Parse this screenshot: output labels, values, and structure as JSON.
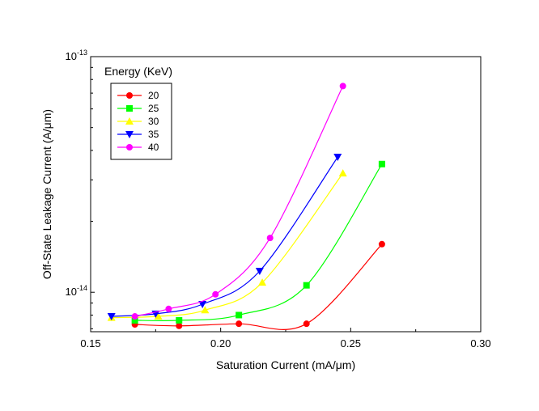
{
  "chart_data": {
    "type": "scatter",
    "xlabel": "Saturation Current (mA/μm)",
    "ylabel": "Off-State Leakage Current (A/μm)",
    "xlim": [
      0.15,
      0.3
    ],
    "ylim": [
      6.8e-15,
      1e-13
    ],
    "yscale": "log",
    "x_ticks": [
      {
        "value": 0.15,
        "label": "0.15"
      },
      {
        "value": 0.2,
        "label": "0.20"
      },
      {
        "value": 0.25,
        "label": "0.25"
      },
      {
        "value": 0.3,
        "label": "0.30"
      }
    ],
    "y_ticks": [
      {
        "value": 1e-14,
        "base": "10",
        "exp": "-14"
      },
      {
        "value": 1e-13,
        "base": "10",
        "exp": "-13"
      }
    ],
    "grid": false,
    "legend": {
      "title": "Energy (KeV)",
      "placement": "top-left"
    },
    "series": [
      {
        "name": "20",
        "color": "#ff0000",
        "marker": "circle",
        "x": [
          0.167,
          0.184,
          0.207,
          0.233,
          0.262
        ],
        "y": [
          7.3e-15,
          7.2e-15,
          7.35e-15,
          7.35e-15,
          1.6e-14
        ]
      },
      {
        "name": "25",
        "color": "#00ff00",
        "marker": "square",
        "x": [
          0.167,
          0.184,
          0.207,
          0.233,
          0.262
        ],
        "y": [
          7.6e-15,
          7.6e-15,
          8e-15,
          1.07e-14,
          3.5e-14
        ]
      },
      {
        "name": "30",
        "color": "#ffff00",
        "marker": "triangle-up",
        "x": [
          0.158,
          0.176,
          0.194,
          0.216,
          0.247
        ],
        "y": [
          7.8e-15,
          7.9e-15,
          8.4e-15,
          1.1e-14,
          3.2e-14
        ]
      },
      {
        "name": "35",
        "color": "#0000ff",
        "marker": "triangle-down",
        "x": [
          0.158,
          0.175,
          0.193,
          0.215,
          0.245
        ],
        "y": [
          7.9e-15,
          8.1e-15,
          8.9e-15,
          1.23e-14,
          3.75e-14
        ]
      },
      {
        "name": "40",
        "color": "#ff00ff",
        "marker": "circle",
        "x": [
          0.167,
          0.18,
          0.198,
          0.219,
          0.247
        ],
        "y": [
          7.9e-15,
          8.5e-15,
          9.8e-15,
          1.7e-14,
          7.5e-14
        ]
      }
    ]
  }
}
